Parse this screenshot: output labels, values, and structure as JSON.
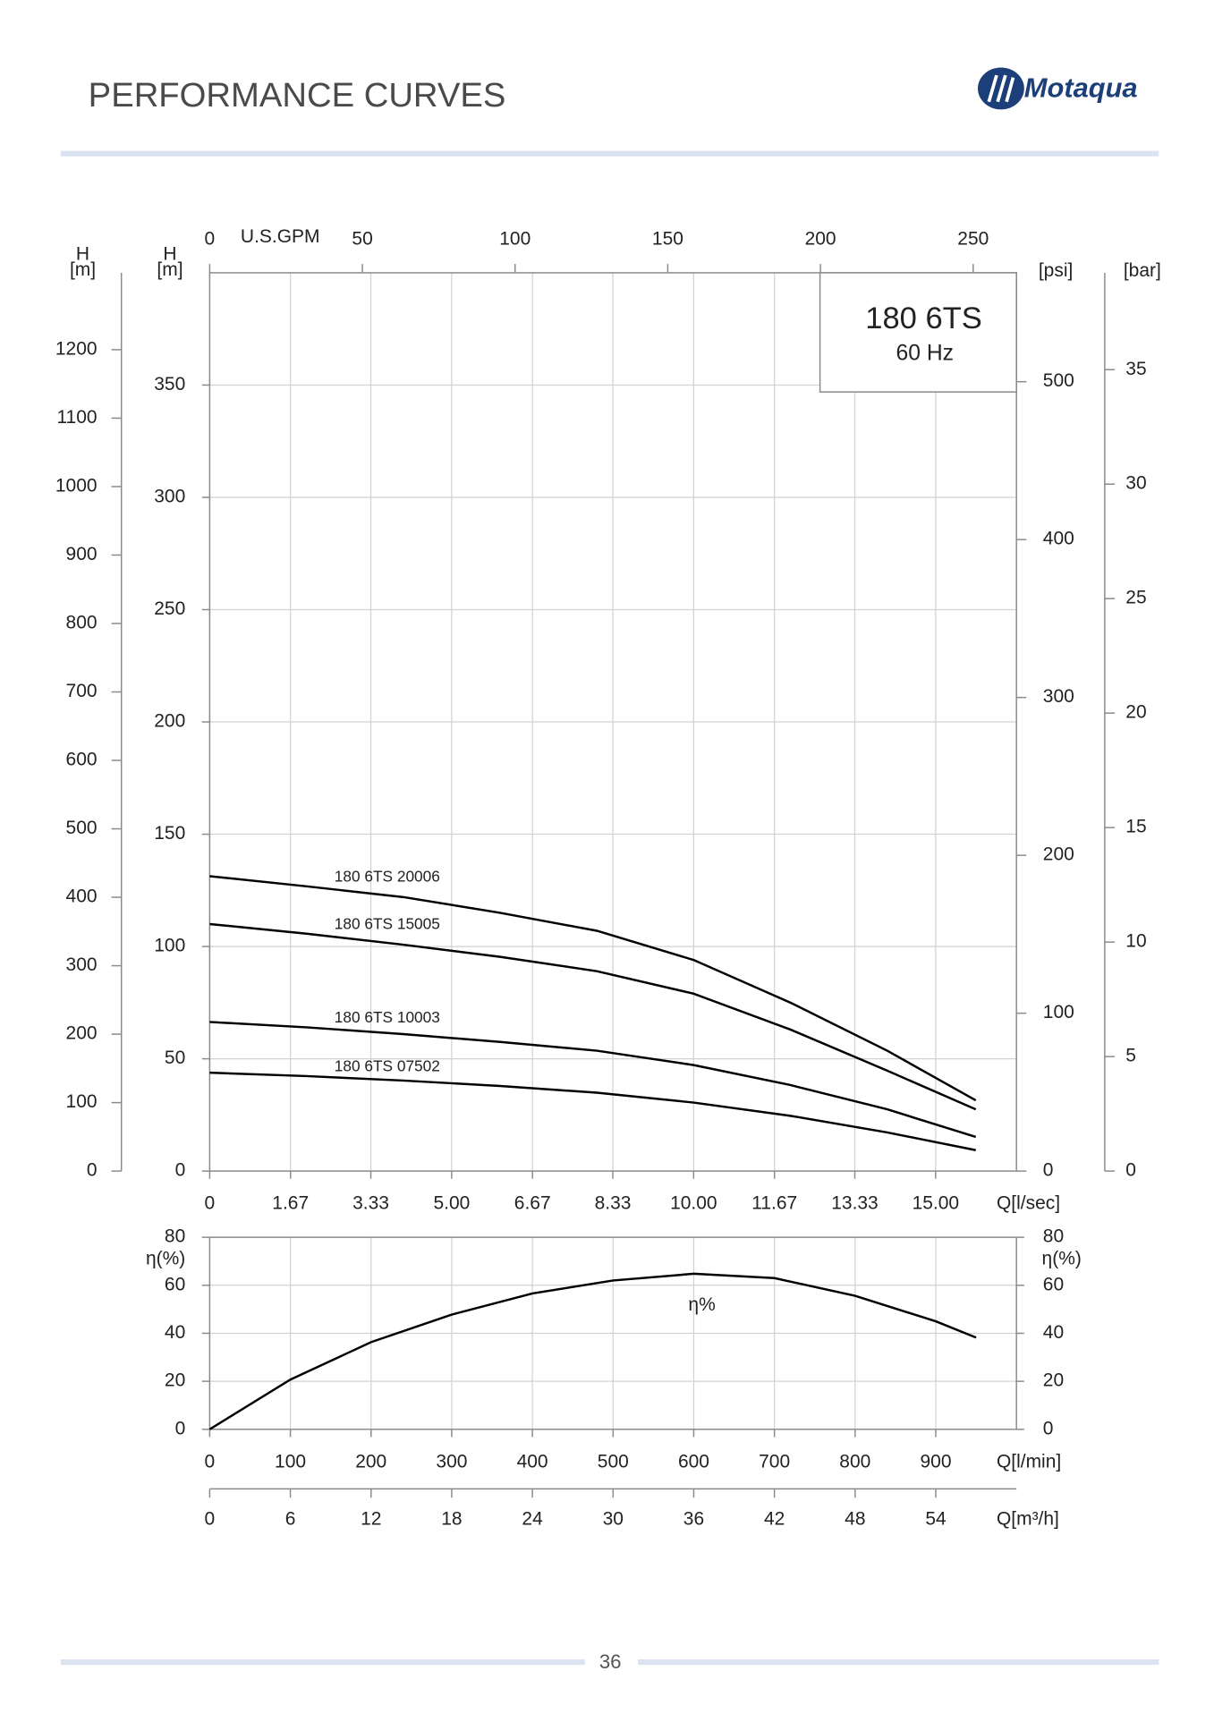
{
  "header": {
    "title": "PERFORMANCE CURVES",
    "logo": "Motaqua"
  },
  "footer": {
    "page_number": "36"
  },
  "chart_data": [
    {
      "type": "line",
      "model": "180 6TS",
      "frequency": "60 Hz",
      "x": [
        0,
        2,
        4,
        6,
        8,
        10,
        12,
        14,
        15.83
      ],
      "xlabel": "Q[l/sec]",
      "xlim": [
        0,
        16.67
      ],
      "xticks": [
        0,
        1.67,
        3.33,
        {
          "value": 5,
          "label": "5.00"
        },
        6.67,
        8.33,
        {
          "value": 10,
          "label": "10.00"
        },
        11.67,
        13.33,
        {
          "value": 15,
          "label": "15.00"
        }
      ],
      "x2label": "U.S.GPM",
      "x2lim": [
        0,
        264.17
      ],
      "x2ticks": [
        0,
        50,
        100,
        150,
        200,
        250
      ],
      "ylabel": [
        "H",
        "[m]"
      ],
      "ylim": [
        0,
        400
      ],
      "yticks": [
        0,
        50,
        100,
        150,
        200,
        250,
        300,
        350
      ],
      "extra_y_axes": [
        {
          "label": [
            "H",
            "[m]"
          ],
          "lim": [
            0,
            1312.34
          ],
          "ticks": [
            0,
            100,
            200,
            300,
            400,
            500,
            600,
            700,
            800,
            900,
            1000,
            1100,
            1200
          ]
        },
        {
          "label": [
            "[psi]"
          ],
          "lim": [
            0,
            569
          ],
          "ticks": [
            0,
            100,
            200,
            300,
            400,
            500
          ]
        },
        {
          "label": [
            "[bar]"
          ],
          "lim": [
            0,
            39.23
          ],
          "ticks": [
            0,
            5,
            10,
            15,
            20,
            25,
            30,
            35
          ]
        }
      ],
      "grid": true,
      "series": [
        {
          "name": "180 6TS 20006",
          "color": "#000000",
          "values": [
            131.3,
            126.8,
            122,
            115,
            107,
            94,
            75,
            53.6,
            31.5
          ]
        },
        {
          "name": "180 6TS 15005",
          "color": "#000000",
          "values": [
            110,
            105.7,
            100.8,
            95.4,
            89,
            79,
            63,
            44.7,
            27.5
          ]
        },
        {
          "name": "180 6TS 10003",
          "color": "#000000",
          "values": [
            66.4,
            64,
            61,
            57.5,
            53.6,
            47.2,
            38.3,
            27.5,
            15.2
          ]
        },
        {
          "name": "180 6TS 07502",
          "color": "#000000",
          "values": [
            43.8,
            42.3,
            40.3,
            37.9,
            34.9,
            30.5,
            24.6,
            17.2,
            9.3
          ]
        }
      ]
    },
    {
      "type": "line",
      "x": [
        0,
        100,
        200,
        300,
        400,
        500,
        600,
        700,
        800,
        900,
        950
      ],
      "xlabel": "Q[l/min]",
      "xlim": [
        0,
        1000
      ],
      "xticks": [
        0,
        100,
        200,
        300,
        400,
        500,
        600,
        700,
        800,
        900
      ],
      "x2label": "Q[m³/h]",
      "x2lim": [
        0,
        60
      ],
      "x2ticks": [
        0,
        6,
        12,
        18,
        24,
        30,
        36,
        42,
        48,
        54
      ],
      "ylabel": "η(%)",
      "ylim": [
        0,
        80
      ],
      "yticks": [
        0,
        20,
        40,
        60,
        80
      ],
      "grid": true,
      "series": [
        {
          "name": "η%",
          "color": "#000000",
          "values": [
            0,
            20.7,
            36.3,
            47.8,
            56.6,
            62,
            64.8,
            63,
            55.6,
            45,
            38.2
          ]
        }
      ]
    }
  ]
}
